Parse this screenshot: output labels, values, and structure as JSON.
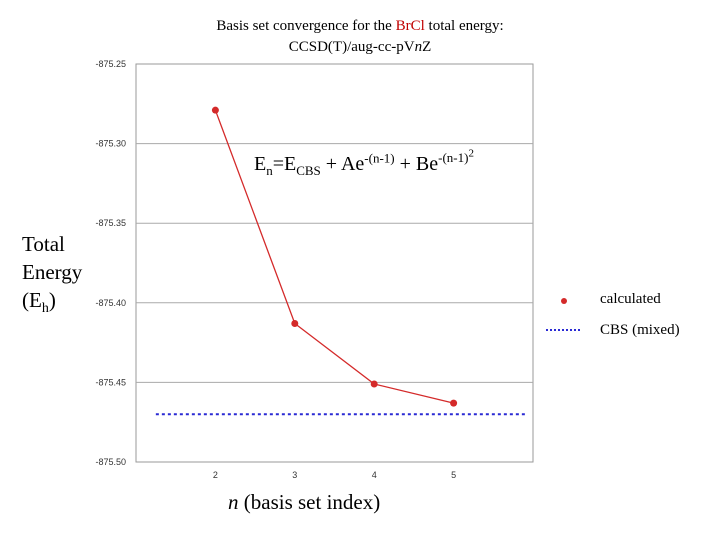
{
  "title": {
    "line1_prefix": "Basis set convergence for the ",
    "line1_highlight": "BrCl",
    "line1_suffix": " total energy:",
    "line2_prefix": "CCSD(T)/aug-cc-pV",
    "line2_italic": "n",
    "line2_suffix": "Z"
  },
  "y_title": {
    "line1": "Total",
    "line2": "Energy",
    "line3_prefix": "(E",
    "line3_sub": "h",
    "line3_suffix": ")"
  },
  "formula": {
    "e": "E",
    "n": "n",
    "eq": "=E",
    "cbs": "CBS",
    "plus_a": " + Ae",
    "exp1": "-(n-1)",
    "plus_b": " + Be",
    "exp2": "-(n-1)",
    "exp2_pow": "2"
  },
  "x_title": {
    "italic": "n",
    "rest": " (basis set index)"
  },
  "legend": {
    "calculated": "calculated",
    "cbs": "CBS (mixed)"
  },
  "colors": {
    "series": "#d42a2a",
    "cbs_line": "#2a2ad4",
    "grid": "#aaaaaa"
  },
  "chart_data": {
    "type": "line",
    "x": [
      2,
      3,
      4,
      5
    ],
    "categories": [
      "2",
      "3",
      "4",
      "5"
    ],
    "series": [
      {
        "name": "calculated",
        "values": [
          -875.279,
          -875.413,
          -875.451,
          -875.463
        ]
      },
      {
        "name": "CBS (mixed)",
        "values": [
          -875.47,
          -875.47,
          -875.47,
          -875.47
        ]
      }
    ],
    "xlim": [
      1,
      6
    ],
    "ylim": [
      -875.5,
      -875.25
    ],
    "yticks": [
      -875.25,
      -875.3,
      -875.35,
      -875.4,
      -875.45,
      -875.5
    ],
    "ytick_labels": [
      "-875.25",
      "-875.30",
      "-875.35",
      "-875.40",
      "-875.45",
      "-875.50"
    ],
    "xtick_labels": [
      "2",
      "3",
      "4",
      "5"
    ],
    "cbs_value": -875.47,
    "cbs_x_range": [
      1.25,
      5.9
    ],
    "grid": true
  }
}
